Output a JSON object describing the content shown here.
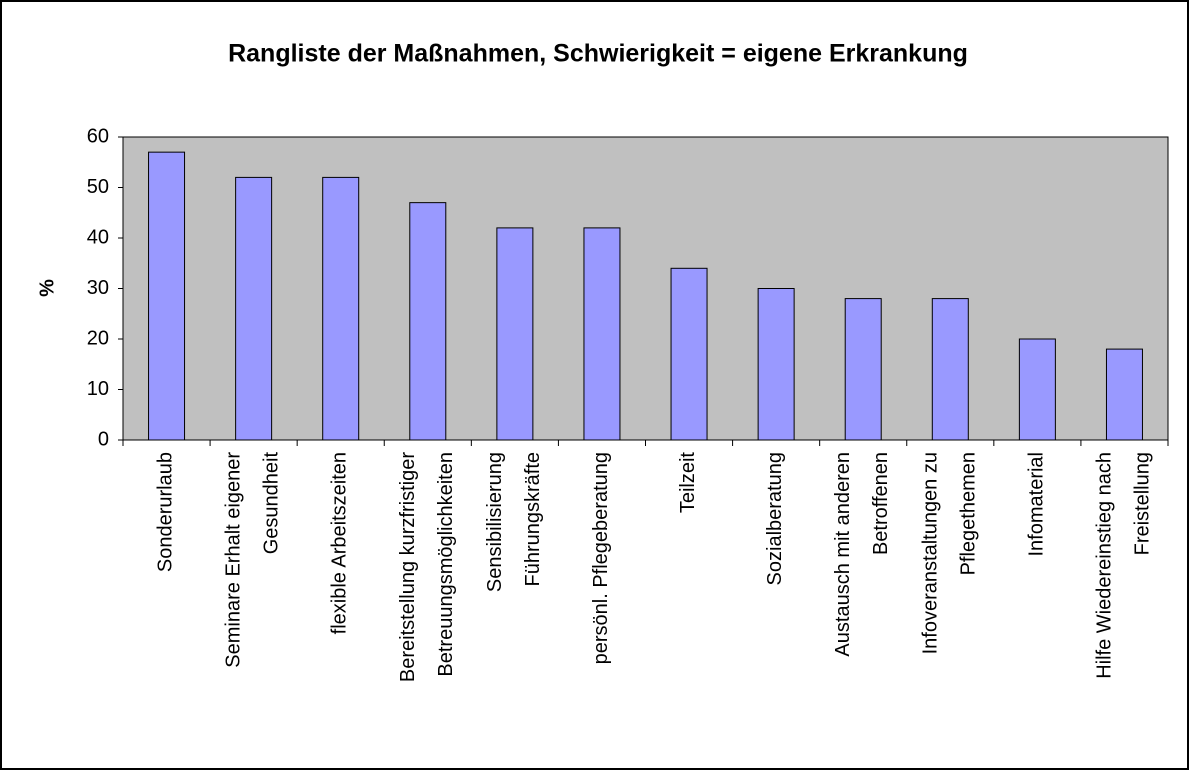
{
  "chart_data": {
    "type": "bar",
    "title": "Rangliste der Maßnahmen, Schwierigkeit = eigene Erkrankung",
    "y_label": "%",
    "categories": [
      "Sonderurlaub",
      "Seminare Erhalt eigener\nGesundheit",
      "flexible Arbeitszeiten",
      "Bereitstellung kurzfristiger\nBetreuungsmöglichkeiten",
      "Sensibilisierung\nFührungskräfte",
      "persönl. Pflegeberatung",
      "Teilzeit",
      "Sozialberatung",
      "Austausch mit anderen\nBetroffenen",
      "Infoveranstaltungen zu\nPflegethemen",
      "Infomaterial",
      "Hilfe Wiedereinstieg nach\nFreistellung"
    ],
    "values": [
      57,
      52,
      52,
      47,
      42,
      42,
      34,
      30,
      28,
      28,
      20,
      18
    ],
    "color": "#9999ff",
    "plot_background": "#c0c0c0",
    "ylim": [
      0,
      60
    ],
    "yticks": [
      0,
      10,
      20,
      30,
      40,
      50,
      60
    ],
    "grid": false
  }
}
